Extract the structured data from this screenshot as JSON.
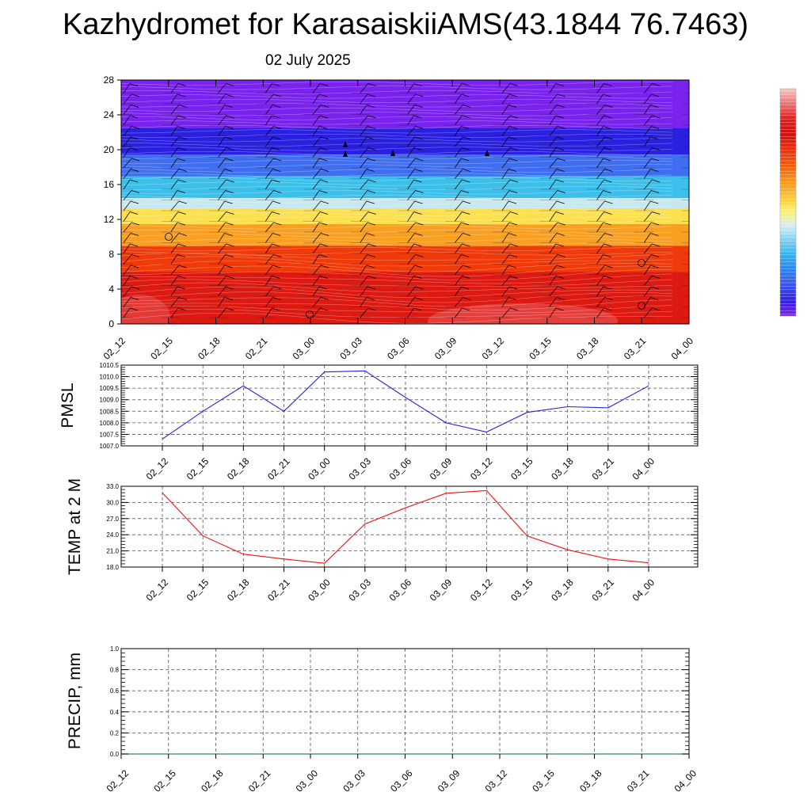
{
  "title": "Kazhydromet for KarasaiskiiAMS(43.1844 76.7463)",
  "subtitle": "02 July 2025",
  "colors": {
    "pmsl_line": "#2222dd",
    "temp_line": "#ee1111",
    "precip_line": "#2e8b57",
    "grid": "#555555"
  },
  "chart_data": [
    {
      "type": "heatmap",
      "title": "",
      "xlabel": "",
      "ylabel": "",
      "x_ticks": [
        "02_12",
        "02_15",
        "02_18",
        "02_21",
        "03_00",
        "03_03",
        "03_06",
        "03_09",
        "03_12",
        "03_15",
        "03_18",
        "03_21",
        "04_00"
      ],
      "y_ticks": [
        0,
        4,
        8,
        12,
        16,
        20,
        24,
        28
      ],
      "ylim": [
        0,
        28
      ],
      "color_bands": [
        {
          "from": 0,
          "to": 6,
          "color": "#dd1a12"
        },
        {
          "from": 6,
          "to": 9,
          "color": "#f03a0a"
        },
        {
          "from": 9,
          "to": 11.5,
          "color": "#f9a022"
        },
        {
          "from": 11.5,
          "to": 13.3,
          "color": "#fde050"
        },
        {
          "from": 13.3,
          "to": 14.5,
          "color": "#c8e8f0"
        },
        {
          "from": 14.5,
          "to": 17,
          "color": "#3cc0ea"
        },
        {
          "from": 17,
          "to": 19.5,
          "color": "#3f6ef0"
        },
        {
          "from": 19.5,
          "to": 22.5,
          "color": "#2a20e0"
        },
        {
          "from": 22.5,
          "to": 28,
          "color": "#7a22ee"
        }
      ],
      "wind_barbs": true
    },
    {
      "type": "line",
      "title": "",
      "xlabel": "",
      "ylabel": "PMSL",
      "x_ticks": [
        "02_12",
        "02_15",
        "02_18",
        "02_21",
        "03_00",
        "03_03",
        "03_06",
        "03_09",
        "03_12",
        "03_15",
        "03_18",
        "03_21",
        "04_00"
      ],
      "ylim": [
        1007.0,
        1010.5
      ],
      "y_ticks": [
        "1007.0",
        "1007.5",
        "1008.0",
        "1008.5",
        "1009.0",
        "1009.5",
        "1010.0",
        "1010.5"
      ],
      "series": [
        {
          "values": [
            1007.3,
            1008.5,
            1009.6,
            1008.5,
            1010.2,
            1010.25,
            1009.1,
            1008.0,
            1007.6,
            1008.45,
            1008.7,
            1008.65,
            1009.6
          ]
        }
      ]
    },
    {
      "type": "line",
      "title": "",
      "xlabel": "",
      "ylabel": "TEMP at 2 M",
      "x_ticks": [
        "02_12",
        "02_15",
        "02_18",
        "02_21",
        "03_00",
        "03_03",
        "03_06",
        "03_09",
        "03_12",
        "03_15",
        "03_18",
        "03_21",
        "04_00"
      ],
      "ylim": [
        18.0,
        33.0
      ],
      "y_ticks": [
        "18.0",
        "21.0",
        "24.0",
        "27.0",
        "30.0",
        "33.0"
      ],
      "series": [
        {
          "values": [
            31.8,
            23.8,
            20.4,
            19.5,
            18.7,
            26.0,
            29.0,
            31.7,
            32.2,
            23.8,
            21.2,
            19.5,
            18.8
          ]
        }
      ]
    },
    {
      "type": "line",
      "title": "",
      "xlabel": "",
      "ylabel": "PRECIP, mm",
      "x_ticks": [
        "02_12",
        "02_15",
        "02_18",
        "02_21",
        "03_00",
        "03_03",
        "03_06",
        "03_09",
        "03_12",
        "03_15",
        "03_18",
        "03_21",
        "04_00"
      ],
      "ylim": [
        0.0,
        1.0
      ],
      "y_ticks": [
        "0.0",
        "0.2",
        "0.4",
        "0.6",
        "0.8",
        "1.0"
      ],
      "series": [
        {
          "values": [
            0,
            0,
            0,
            0,
            0,
            0,
            0,
            0,
            0,
            0,
            0,
            0,
            0
          ]
        }
      ]
    }
  ],
  "colorbar": {
    "colors": [
      "#f4c8c8",
      "#ec7070",
      "#e02020",
      "#d01010",
      "#e83010",
      "#f05a0a",
      "#f7901a",
      "#fbbf30",
      "#fff060",
      "#d8eef4",
      "#7fd0f0",
      "#30b0ea",
      "#2f80ee",
      "#3a50ee",
      "#3020e0",
      "#7a22ee"
    ]
  }
}
